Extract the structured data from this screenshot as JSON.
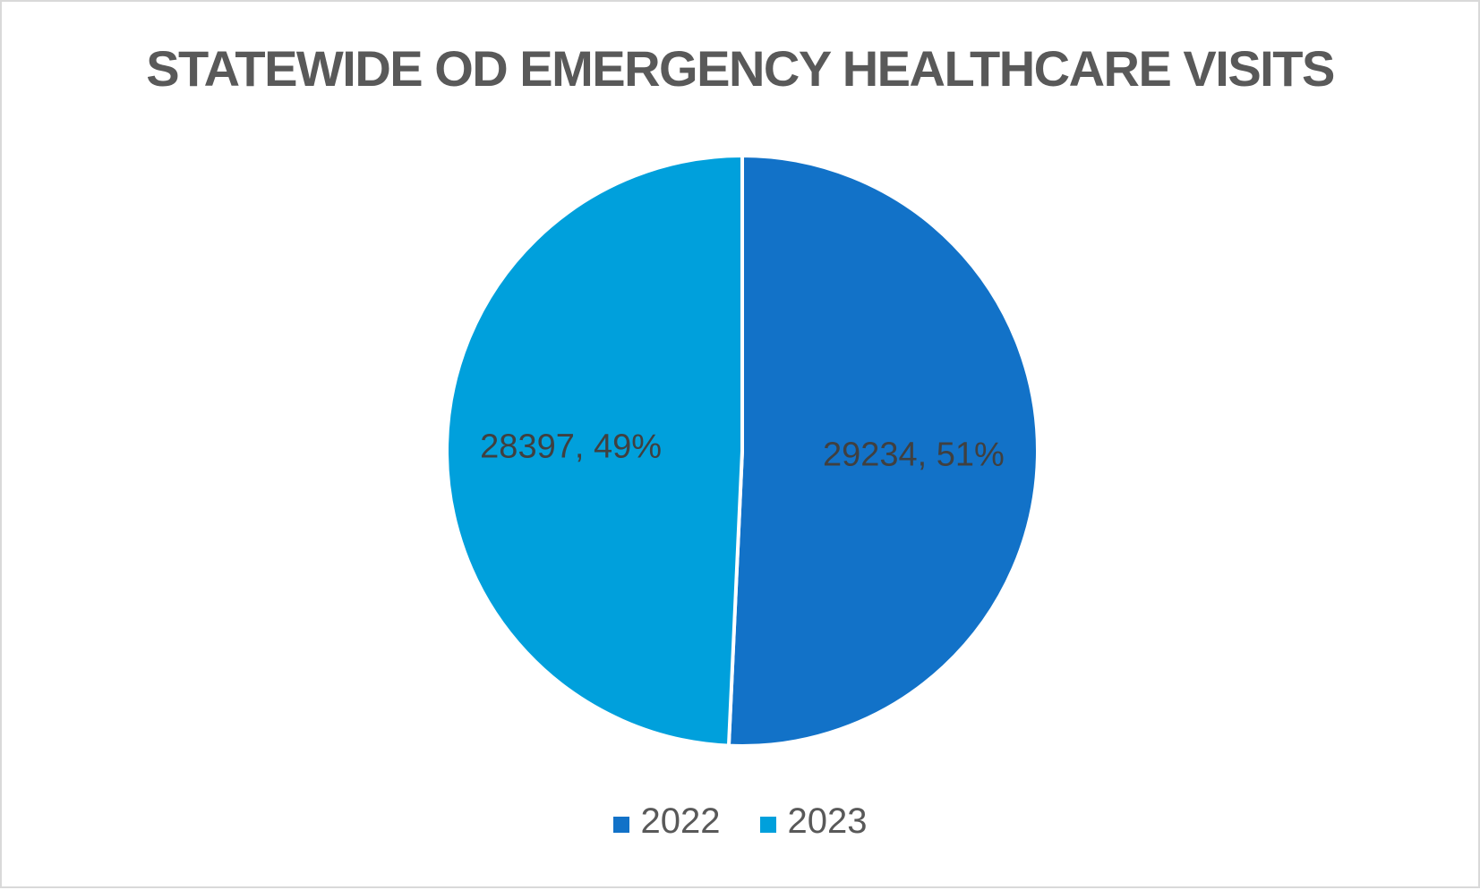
{
  "frame": {
    "background": "#FFFFFF",
    "border_color": "#D9D9D9"
  },
  "chart_data": {
    "type": "pie",
    "title": "STATEWIDE OD EMERGENCY HEALTHCARE VISITS",
    "series": [
      {
        "name": "2022",
        "value": 29234,
        "percent": 51,
        "label": "29234, 51%",
        "color": "#1272C8"
      },
      {
        "name": "2023",
        "value": 28397,
        "percent": 49,
        "label": "28397, 49%",
        "color": "#00A0DC"
      }
    ],
    "start_angle_deg": 0,
    "direction": "clockwise",
    "slice_gap_color": "#FFFFFF",
    "title_color": "#595959",
    "data_label_color": "#404040",
    "legend": {
      "position": "bottom",
      "items": [
        "2022",
        "2023"
      ],
      "text_color": "#595959"
    }
  }
}
